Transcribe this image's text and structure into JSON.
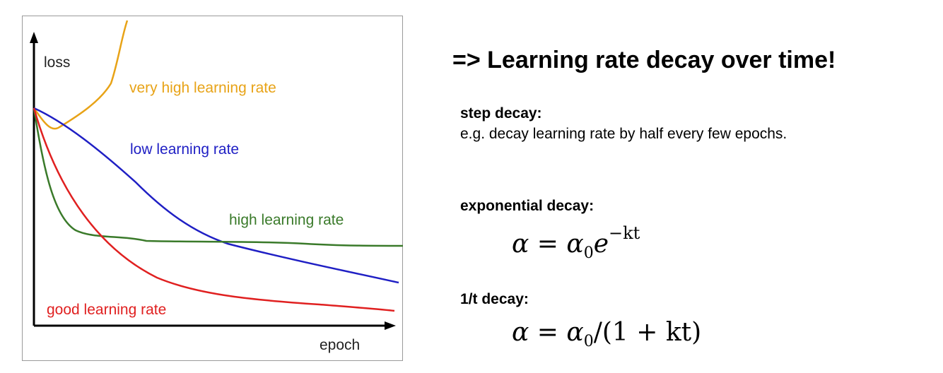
{
  "diagram": {
    "axes": {
      "y_label": "loss",
      "x_label": "epoch"
    },
    "curves": [
      {
        "name": "very high learning rate",
        "color": "#e8a317"
      },
      {
        "name": "low learning rate",
        "color": "#1f1fc4"
      },
      {
        "name": "high learning rate",
        "color": "#3a7a2a"
      },
      {
        "name": "good learning rate",
        "color": "#e02020"
      }
    ]
  },
  "headline": "=> Learning rate decay over time!",
  "sections": {
    "step": {
      "title": "step decay:",
      "text": "e.g. decay learning rate by half every few epochs."
    },
    "exponential": {
      "title": "exponential decay:",
      "formula": "α = α₀e^(−kt)",
      "formula_lhs": "α",
      "formula_eq": " = ",
      "formula_base": "α",
      "formula_sub": "0",
      "formula_e": "e",
      "formula_exp": "−kt"
    },
    "inverse_t": {
      "title": "1/t decay:",
      "formula": "α = α₀/(1 + kt)",
      "formula_lhs": "α",
      "formula_eq": " = ",
      "formula_base": "α",
      "formula_sub": "0",
      "formula_rest": "/(1 + kt)"
    }
  }
}
